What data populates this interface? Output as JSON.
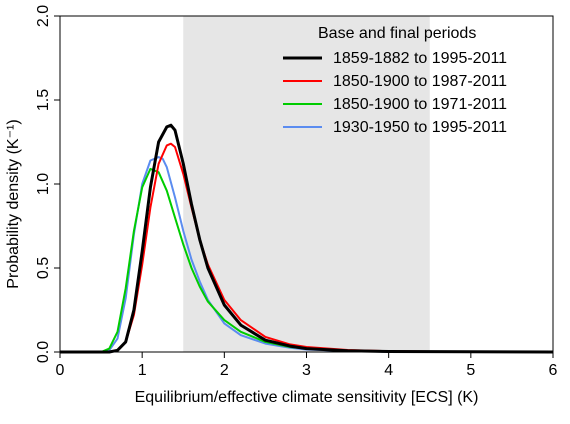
{
  "chart_data": {
    "type": "line",
    "xlabel": "Equilibrium/effective climate sensitivity [ECS] (K)",
    "ylabel": "Probability density (K⁻¹)",
    "xlim": [
      0,
      6
    ],
    "ylim": [
      0,
      2
    ],
    "x_ticks": [
      "0",
      "1",
      "2",
      "3",
      "4",
      "5",
      "6"
    ],
    "y_ticks": [
      "0.0",
      "0.5",
      "1.0",
      "1.5",
      "2.0"
    ],
    "grid": false,
    "shaded_region": {
      "x_from": 1.5,
      "x_to": 4.5,
      "color": "#e6e6e6"
    },
    "legend": {
      "title": "Base and final periods",
      "placement": "top-right"
    },
    "series": [
      {
        "name": "1859-1882 to 1995-2011",
        "color": "#000000",
        "x": [
          0,
          0.6,
          0.7,
          0.8,
          0.9,
          1.0,
          1.1,
          1.2,
          1.3,
          1.35,
          1.4,
          1.5,
          1.6,
          1.7,
          1.8,
          2.0,
          2.2,
          2.5,
          2.8,
          3.0,
          3.5,
          4.0,
          5.0,
          6.0
        ],
        "y": [
          0,
          0,
          0.01,
          0.06,
          0.25,
          0.6,
          0.98,
          1.25,
          1.34,
          1.35,
          1.32,
          1.12,
          0.88,
          0.67,
          0.5,
          0.28,
          0.16,
          0.07,
          0.035,
          0.02,
          0.008,
          0.003,
          0.001,
          0
        ]
      },
      {
        "name": "1850-1900 to 1987-2011",
        "color": "#ff0000",
        "x": [
          0,
          0.6,
          0.7,
          0.8,
          0.9,
          1.0,
          1.1,
          1.2,
          1.3,
          1.35,
          1.4,
          1.5,
          1.6,
          1.7,
          1.8,
          2.0,
          2.2,
          2.5,
          2.8,
          3.0,
          3.5,
          4.0,
          5.0,
          6.0
        ],
        "y": [
          0,
          0,
          0.01,
          0.06,
          0.22,
          0.52,
          0.86,
          1.12,
          1.23,
          1.24,
          1.22,
          1.06,
          0.86,
          0.67,
          0.52,
          0.31,
          0.19,
          0.09,
          0.045,
          0.03,
          0.012,
          0.005,
          0.001,
          0
        ]
      },
      {
        "name": "1850-1900 to 1971-2011",
        "color": "#00cc00",
        "x": [
          0,
          0.5,
          0.6,
          0.7,
          0.8,
          0.9,
          1.0,
          1.1,
          1.2,
          1.3,
          1.4,
          1.5,
          1.6,
          1.7,
          1.8,
          2.0,
          2.2,
          2.5,
          2.8,
          3.0,
          3.5,
          4.0,
          5.0,
          6.0
        ],
        "y": [
          0,
          0,
          0.02,
          0.12,
          0.38,
          0.72,
          0.98,
          1.09,
          1.07,
          0.96,
          0.8,
          0.64,
          0.5,
          0.39,
          0.3,
          0.19,
          0.12,
          0.06,
          0.03,
          0.02,
          0.008,
          0.003,
          0.001,
          0
        ]
      },
      {
        "name": "1930-1950 to 1995-2011",
        "color": "#5b8cf0",
        "x": [
          0,
          0.55,
          0.6,
          0.7,
          0.8,
          0.9,
          1.0,
          1.1,
          1.2,
          1.25,
          1.3,
          1.4,
          1.5,
          1.6,
          1.7,
          1.8,
          2.0,
          2.2,
          2.5,
          2.8,
          3.0,
          3.5,
          4.0,
          5.0,
          6.0
        ],
        "y": [
          0,
          0,
          0.01,
          0.08,
          0.32,
          0.7,
          1.0,
          1.14,
          1.16,
          1.15,
          1.1,
          0.92,
          0.72,
          0.55,
          0.42,
          0.31,
          0.17,
          0.1,
          0.05,
          0.025,
          0.015,
          0.006,
          0.002,
          0.001,
          0
        ]
      }
    ]
  }
}
